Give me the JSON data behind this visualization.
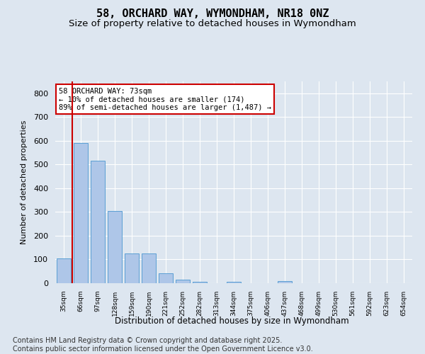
{
  "title": "58, ORCHARD WAY, WYMONDHAM, NR18 0NZ",
  "subtitle": "Size of property relative to detached houses in Wymondham",
  "xlabel": "Distribution of detached houses by size in Wymondham",
  "ylabel": "Number of detached properties",
  "categories": [
    "35sqm",
    "66sqm",
    "97sqm",
    "128sqm",
    "159sqm",
    "190sqm",
    "221sqm",
    "252sqm",
    "282sqm",
    "313sqm",
    "344sqm",
    "375sqm",
    "406sqm",
    "437sqm",
    "468sqm",
    "499sqm",
    "530sqm",
    "561sqm",
    "592sqm",
    "623sqm",
    "654sqm"
  ],
  "values": [
    103,
    590,
    515,
    305,
    125,
    125,
    42,
    14,
    5,
    0,
    5,
    0,
    0,
    8,
    0,
    0,
    0,
    0,
    0,
    0,
    0
  ],
  "bar_color": "#aec6e8",
  "bar_edge_color": "#5a9fd4",
  "annotation_line_color": "#cc0000",
  "annotation_box_text": "58 ORCHARD WAY: 73sqm\n← 10% of detached houses are smaller (174)\n89% of semi-detached houses are larger (1,487) →",
  "annotation_box_edgecolor": "#cc0000",
  "ylim": [
    0,
    850
  ],
  "yticks": [
    0,
    100,
    200,
    300,
    400,
    500,
    600,
    700,
    800
  ],
  "background_color": "#dde6f0",
  "plot_background": "#dde6f0",
  "footer_line1": "Contains HM Land Registry data © Crown copyright and database right 2025.",
  "footer_line2": "Contains public sector information licensed under the Open Government Licence v3.0.",
  "title_fontsize": 11,
  "subtitle_fontsize": 9.5,
  "footer_fontsize": 7,
  "grid_color": "#ffffff"
}
